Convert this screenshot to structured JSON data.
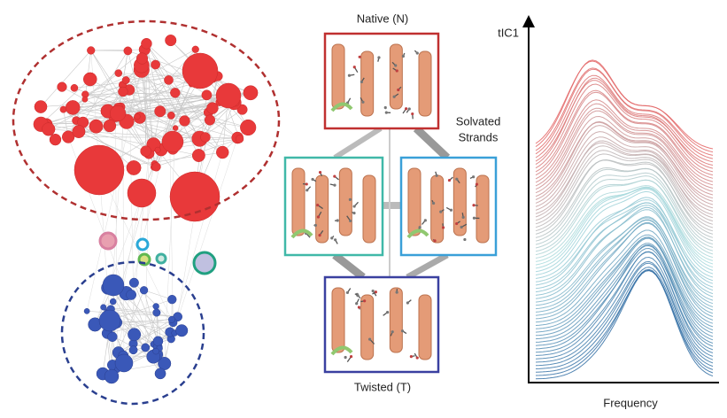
{
  "states": {
    "native": "Native (N)",
    "solvated": [
      "Solvated",
      "Strands"
    ],
    "twisted": "Twisted (T)"
  },
  "axes": {
    "y_label": "tIC1",
    "x_label": "Frequency"
  }
}
